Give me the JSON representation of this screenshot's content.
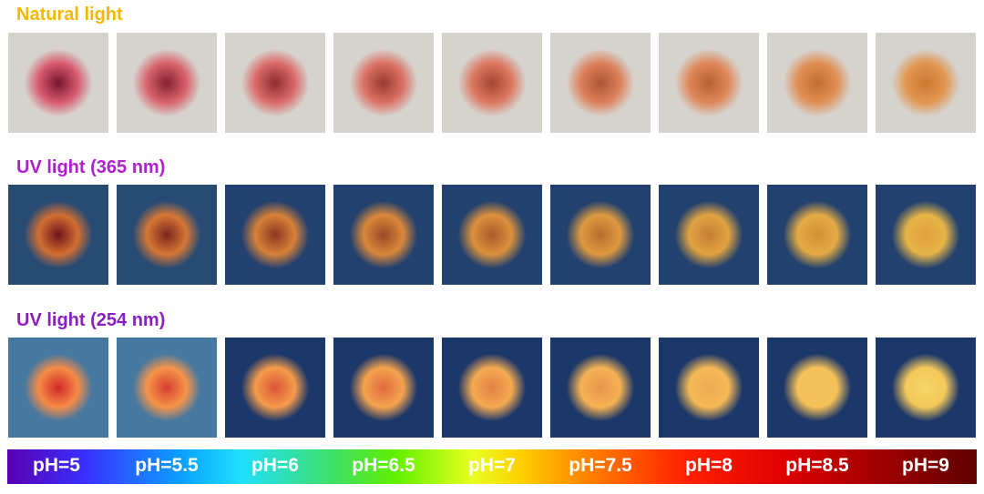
{
  "rows": [
    {
      "label": "Natural light"
    },
    {
      "label": "UV light (365 nm)"
    },
    {
      "label": "UV light (254 nm)"
    }
  ],
  "ph_labels": [
    "pH=5",
    "pH=5.5",
    "pH=6",
    "pH=6.5",
    "pH=7",
    "pH=7.5",
    "pH=8",
    "pH=8.5",
    "pH=9"
  ]
}
